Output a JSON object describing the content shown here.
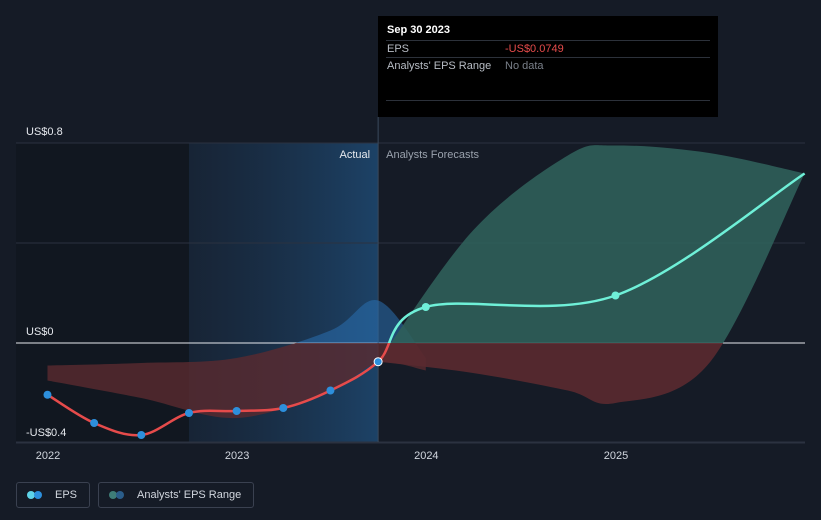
{
  "tooltip": {
    "date": "Sep 30 2023",
    "rows": [
      {
        "label": "EPS",
        "value": "-US$0.0749"
      },
      {
        "label": "Analysts' EPS Range",
        "value": "No data"
      }
    ]
  },
  "segments": {
    "actual": "Actual",
    "forecast": "Analysts Forecasts"
  },
  "legend": [
    {
      "label": "EPS",
      "colors": [
        "#5ed3e8",
        "#2d8fdc"
      ]
    },
    {
      "label": "Analysts' EPS Range",
      "colors": [
        "#3e7d78",
        "#2a5d8a"
      ]
    }
  ],
  "colors": {
    "eps_negative": "#e64b4b",
    "eps_positive": "#6ff0d8",
    "point_actual": "#2d8fdc",
    "range_positive": "#2f5f5a",
    "range_negative": "#5a2a30",
    "past_highlight": "#1d3c5c"
  },
  "chart_data": {
    "type": "line",
    "y_tick_labels": [
      "US$0.8",
      "US$0",
      "-US$0.4"
    ],
    "x_tick_labels": [
      "2022",
      "2023",
      "2024",
      "2025"
    ],
    "ylim": [
      -0.4,
      0.8
    ],
    "xlim": [
      "2022-01-01",
      "2025-12-31"
    ],
    "grid": true,
    "series": [
      {
        "name": "EPS",
        "x": [
          "2021-12-31",
          "2022-03-31",
          "2022-06-30",
          "2022-09-30",
          "2022-12-31",
          "2023-03-31",
          "2023-06-30",
          "2023-09-30",
          "2023-12-31",
          "2024-12-31",
          "2025-12-31"
        ],
        "y": [
          -0.207,
          -0.32,
          -0.368,
          -0.28,
          -0.272,
          -0.26,
          -0.19,
          -0.0749,
          0.144,
          0.19,
          0.678
        ],
        "markers": [
          true,
          true,
          true,
          true,
          true,
          true,
          true,
          true,
          true,
          true,
          false
        ]
      },
      {
        "name": "Analysts' EPS Range",
        "x": [
          "2023-09-30",
          "2024-03-31",
          "2024-09-30",
          "2024-12-31",
          "2025-06-30",
          "2025-12-31"
        ],
        "high": [
          -0.0749,
          0.45,
          0.75,
          0.79,
          0.76,
          0.678
        ],
        "low": [
          -0.0749,
          -0.12,
          -0.19,
          -0.24,
          -0.08,
          0.678
        ]
      }
    ],
    "past_range_band": {
      "x": [
        "2021-12-31",
        "2022-06-30",
        "2022-12-31",
        "2023-06-30",
        "2023-09-30",
        "2023-12-31"
      ],
      "high": [
        -0.09,
        -0.08,
        -0.06,
        0.05,
        0.17,
        -0.06
      ],
      "low": [
        -0.15,
        -0.22,
        -0.3,
        -0.19,
        -0.08,
        -0.11
      ]
    },
    "tooltip_x": "2023-09-30"
  }
}
